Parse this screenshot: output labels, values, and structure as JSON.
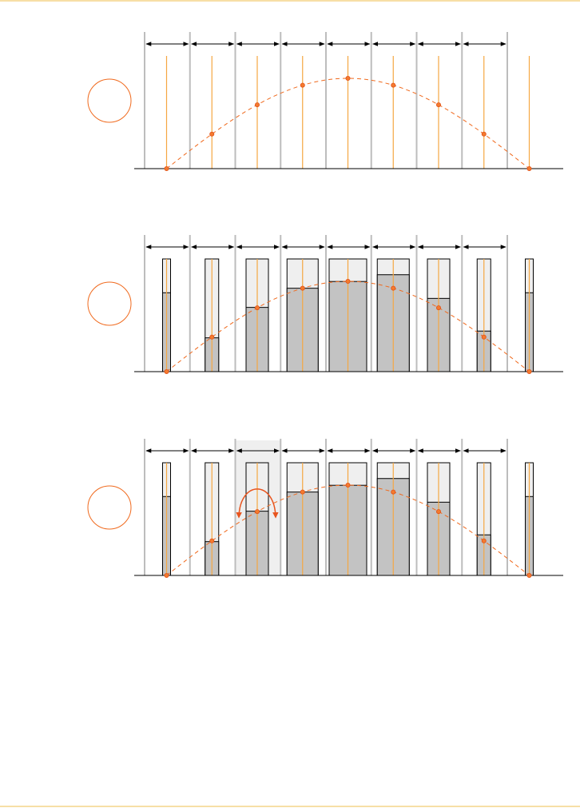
{
  "colors": {
    "page_rule": "#f7dfa6",
    "grid_line": "#bdbdbd",
    "axis": "#000000",
    "sample_line": "#f5a742",
    "curve": "#f06a1e",
    "marker_fill": "#f47a2e",
    "marker_stroke": "#e0521a",
    "bar_fill": "#c3c3c3",
    "bar_empty": "#efefef",
    "bar_stroke": "#000000",
    "label_circle": "#f06a1e",
    "highlight_bg": "#efefef",
    "double_arrow": "#e8541e"
  },
  "icons": {
    "interval_arrow": "double-headed-arrow-icon",
    "panel_label": "empty-circle-icon",
    "redistribute": "curved-double-arrow-icon"
  },
  "diagram": {
    "interval_count": 8,
    "sample_count": 9,
    "samples": [
      0,
      0.38,
      0.7,
      0.92,
      1.0,
      0.92,
      0.7,
      0.38,
      0
    ],
    "panels": [
      {
        "id": "point-samples",
        "shows_bars": false,
        "highlight_interval": null
      },
      {
        "id": "box-samples",
        "shows_bars": true,
        "highlight_interval": null,
        "bar_fill_levels": [
          0.7,
          0.3,
          0.57,
          0.74,
          0.8,
          0.86,
          0.65,
          0.36,
          0.7
        ]
      },
      {
        "id": "box-samples-redistributed",
        "shows_bars": true,
        "highlight_interval": 2,
        "bar_fill_levels": [
          0.7,
          0.3,
          0.57,
          0.74,
          0.8,
          0.86,
          0.65,
          0.36,
          0.7
        ]
      }
    ]
  }
}
